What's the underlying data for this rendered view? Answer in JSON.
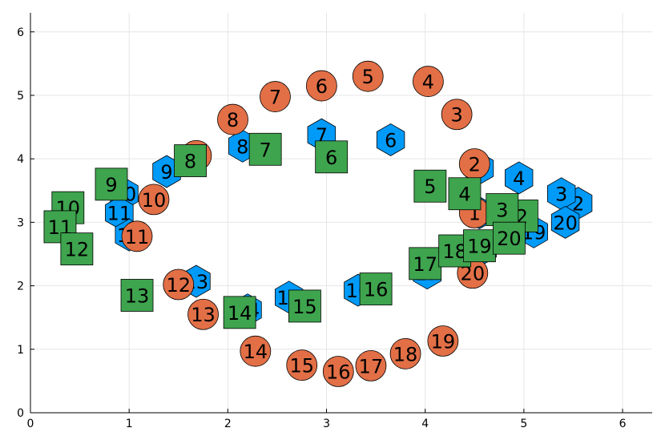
{
  "chart_data": {
    "type": "scatter",
    "title": "",
    "xlabel": "",
    "ylabel": "",
    "xlim": [
      0,
      6.3
    ],
    "ylim": [
      0,
      6.3
    ],
    "xticks": [
      0,
      1,
      2,
      3,
      4,
      5,
      6
    ],
    "yticks": [
      0,
      1,
      2,
      3,
      4,
      5,
      6
    ],
    "grid": true,
    "legend": "none",
    "series": [
      {
        "marker": "hexagon",
        "color": "#009af9",
        "points": [
          {
            "label": "1",
            "x": 4.55,
            "y": 3.15
          },
          {
            "label": "2",
            "x": 5.55,
            "y": 3.3
          },
          {
            "label": "3",
            "x": 5.38,
            "y": 3.45
          },
          {
            "label": "4",
            "x": 4.95,
            "y": 3.7
          },
          {
            "label": "5",
            "x": 4.55,
            "y": 3.85
          },
          {
            "label": "6",
            "x": 3.65,
            "y": 4.3
          },
          {
            "label": "7",
            "x": 2.95,
            "y": 4.38
          },
          {
            "label": "8",
            "x": 2.15,
            "y": 4.2
          },
          {
            "label": "9",
            "x": 1.38,
            "y": 3.8
          },
          {
            "label": "10",
            "x": 0.95,
            "y": 3.45
          },
          {
            "label": "11",
            "x": 0.9,
            "y": 3.15
          },
          {
            "label": "12",
            "x": 1.0,
            "y": 2.8
          },
          {
            "label": "13",
            "x": 1.68,
            "y": 2.07
          },
          {
            "label": "14",
            "x": 2.2,
            "y": 1.62
          },
          {
            "label": "15",
            "x": 2.62,
            "y": 1.82
          },
          {
            "label": "16",
            "x": 3.32,
            "y": 1.93
          },
          {
            "label": "17",
            "x": 4.02,
            "y": 2.2
          },
          {
            "label": "18",
            "x": 4.58,
            "y": 2.58
          },
          {
            "label": "19",
            "x": 5.1,
            "y": 2.85
          },
          {
            "label": "20",
            "x": 5.42,
            "y": 3.0
          }
        ]
      },
      {
        "marker": "circle",
        "color": "#e26f46",
        "points": [
          {
            "label": "1",
            "x": 4.5,
            "y": 3.15
          },
          {
            "label": "2",
            "x": 4.5,
            "y": 3.92
          },
          {
            "label": "3",
            "x": 4.32,
            "y": 4.7
          },
          {
            "label": "4",
            "x": 4.03,
            "y": 5.22
          },
          {
            "label": "5",
            "x": 3.42,
            "y": 5.3
          },
          {
            "label": "6",
            "x": 2.95,
            "y": 5.15
          },
          {
            "label": "7",
            "x": 2.48,
            "y": 4.98
          },
          {
            "label": "8",
            "x": 2.05,
            "y": 4.62
          },
          {
            "label": "9",
            "x": 1.68,
            "y": 4.05
          },
          {
            "label": "10",
            "x": 1.25,
            "y": 3.36
          },
          {
            "label": "11",
            "x": 1.08,
            "y": 2.78
          },
          {
            "label": "12",
            "x": 1.5,
            "y": 2.02
          },
          {
            "label": "13",
            "x": 1.75,
            "y": 1.55
          },
          {
            "label": "14",
            "x": 2.28,
            "y": 0.97
          },
          {
            "label": "15",
            "x": 2.75,
            "y": 0.75
          },
          {
            "label": "16",
            "x": 3.12,
            "y": 0.65
          },
          {
            "label": "17",
            "x": 3.45,
            "y": 0.74
          },
          {
            "label": "18",
            "x": 3.8,
            "y": 0.93
          },
          {
            "label": "19",
            "x": 4.18,
            "y": 1.13
          },
          {
            "label": "20",
            "x": 4.48,
            "y": 2.2
          }
        ]
      },
      {
        "marker": "square",
        "color": "#3ea44e",
        "points": [
          {
            "label": "1",
            "x": 4.85,
            "y": 2.95
          },
          {
            "label": "2",
            "x": 4.98,
            "y": 3.1
          },
          {
            "label": "3",
            "x": 4.78,
            "y": 3.2
          },
          {
            "label": "4",
            "x": 4.4,
            "y": 3.45
          },
          {
            "label": "5",
            "x": 4.05,
            "y": 3.57
          },
          {
            "label": "6",
            "x": 3.05,
            "y": 4.03
          },
          {
            "label": "7",
            "x": 2.38,
            "y": 4.15
          },
          {
            "label": "8",
            "x": 1.62,
            "y": 3.97
          },
          {
            "label": "9",
            "x": 0.82,
            "y": 3.6
          },
          {
            "label": "10",
            "x": 0.38,
            "y": 3.23
          },
          {
            "label": "11",
            "x": 0.3,
            "y": 2.93
          },
          {
            "label": "12",
            "x": 0.47,
            "y": 2.58
          },
          {
            "label": "13",
            "x": 1.08,
            "y": 1.85
          },
          {
            "label": "14",
            "x": 2.12,
            "y": 1.58
          },
          {
            "label": "15",
            "x": 2.78,
            "y": 1.68
          },
          {
            "label": "16",
            "x": 3.5,
            "y": 1.95
          },
          {
            "label": "17",
            "x": 4.0,
            "y": 2.35
          },
          {
            "label": "18",
            "x": 4.3,
            "y": 2.55
          },
          {
            "label": "19",
            "x": 4.55,
            "y": 2.63
          },
          {
            "label": "20",
            "x": 4.85,
            "y": 2.75
          }
        ]
      }
    ]
  }
}
